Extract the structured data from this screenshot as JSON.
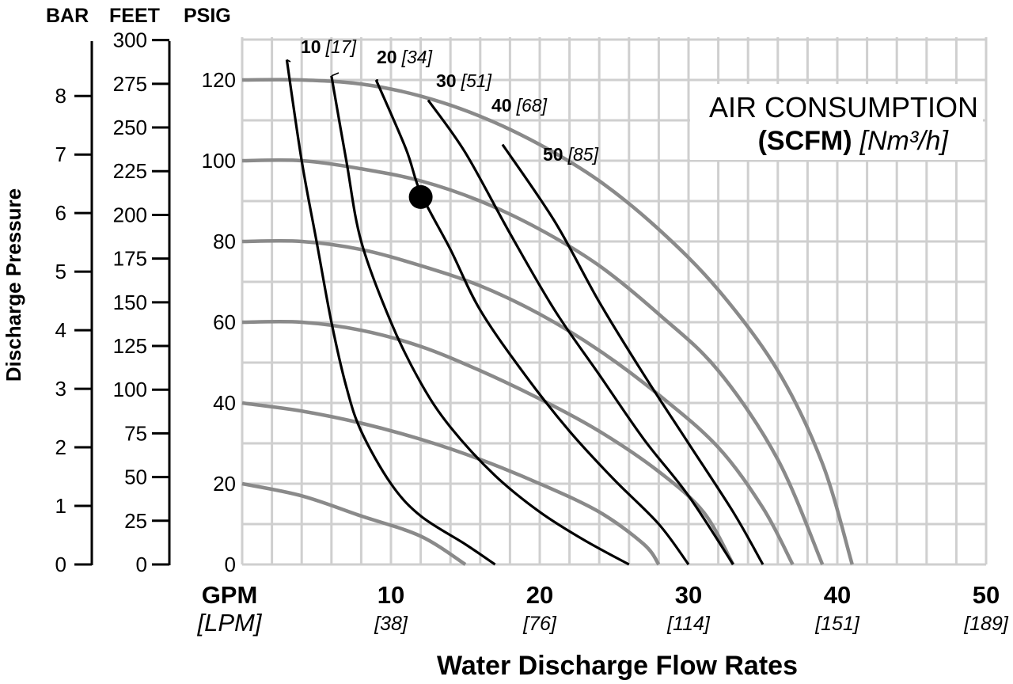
{
  "chart_data": {
    "type": "line",
    "title": "AIR CONSUMPTION",
    "subtitle_bold": "(SCFM)",
    "subtitle_italic": "[Nm³/h]",
    "xlabel": "Water Discharge Flow Rates",
    "x_unit_label": "GPM",
    "x_unit_label_alt": "[LPM]",
    "ylabel": "Discharge Pressure",
    "xlim": [
      0,
      50
    ],
    "ylim": [
      0,
      130
    ],
    "grid": true,
    "x_ticks": [
      {
        "gpm": "10",
        "lpm": "[38]"
      },
      {
        "gpm": "20",
        "lpm": "[76]"
      },
      {
        "gpm": "30",
        "lpm": "[114]"
      },
      {
        "gpm": "40",
        "lpm": "[151]"
      },
      {
        "gpm": "50",
        "lpm": "[189]"
      }
    ],
    "axes": {
      "bar": {
        "title": "BAR",
        "ticks": [
          "0",
          "1",
          "2",
          "3",
          "4",
          "5",
          "6",
          "7",
          "8"
        ]
      },
      "feet": {
        "title": "FEET",
        "ticks": [
          "0",
          "25",
          "50",
          "75",
          "100",
          "125",
          "150",
          "175",
          "200",
          "225",
          "250",
          "275",
          "300"
        ]
      },
      "psig": {
        "title": "PSIG",
        "ticks": [
          "0",
          "20",
          "40",
          "60",
          "80",
          "100",
          "120"
        ]
      }
    },
    "pressure_curves": [
      {
        "points": [
          [
            0,
            120
          ],
          [
            4,
            120
          ],
          [
            8,
            119
          ],
          [
            12,
            116
          ],
          [
            16,
            111
          ],
          [
            20,
            104
          ],
          [
            24,
            95
          ],
          [
            28,
            83
          ],
          [
            32,
            68
          ],
          [
            36,
            48
          ],
          [
            39,
            25
          ],
          [
            41,
            0
          ]
        ]
      },
      {
        "points": [
          [
            0,
            100
          ],
          [
            4,
            100
          ],
          [
            8,
            98
          ],
          [
            12,
            95
          ],
          [
            16,
            90
          ],
          [
            20,
            83
          ],
          [
            24,
            74
          ],
          [
            28,
            62
          ],
          [
            32,
            48
          ],
          [
            36,
            26
          ],
          [
            39,
            0
          ]
        ]
      },
      {
        "points": [
          [
            0,
            80
          ],
          [
            4,
            80
          ],
          [
            8,
            78
          ],
          [
            12,
            74
          ],
          [
            16,
            69
          ],
          [
            20,
            62
          ],
          [
            24,
            53
          ],
          [
            28,
            42
          ],
          [
            32,
            29
          ],
          [
            35,
            14
          ],
          [
            37,
            0
          ]
        ]
      },
      {
        "points": [
          [
            0,
            60
          ],
          [
            4,
            60
          ],
          [
            8,
            58
          ],
          [
            12,
            54
          ],
          [
            16,
            48
          ],
          [
            20,
            41
          ],
          [
            24,
            33
          ],
          [
            28,
            23
          ],
          [
            31,
            13
          ],
          [
            33,
            0
          ]
        ]
      },
      {
        "points": [
          [
            0,
            40
          ],
          [
            4,
            38
          ],
          [
            8,
            35
          ],
          [
            12,
            31
          ],
          [
            16,
            26
          ],
          [
            20,
            20
          ],
          [
            24,
            13
          ],
          [
            27,
            5
          ],
          [
            28,
            0
          ]
        ]
      },
      {
        "points": [
          [
            0,
            20
          ],
          [
            4,
            17
          ],
          [
            8,
            12
          ],
          [
            12,
            7
          ],
          [
            15,
            0
          ]
        ]
      }
    ],
    "air_curves": [
      {
        "label": "10",
        "label_alt": "[17]",
        "points": [
          [
            3,
            125
          ],
          [
            4,
            100
          ],
          [
            5,
            80
          ],
          [
            6,
            60
          ],
          [
            7,
            44
          ],
          [
            8,
            33
          ],
          [
            10,
            20
          ],
          [
            12,
            12
          ],
          [
            15,
            5
          ],
          [
            17,
            0
          ]
        ]
      },
      {
        "label": "20",
        "label_alt": "[34]",
        "points": [
          [
            6,
            121
          ],
          [
            7,
            100
          ],
          [
            8,
            80
          ],
          [
            10,
            60
          ],
          [
            12,
            45
          ],
          [
            14,
            34
          ],
          [
            17,
            22
          ],
          [
            20,
            13
          ],
          [
            23,
            6
          ],
          [
            26,
            0
          ]
        ]
      },
      {
        "label": "30",
        "label_alt": "[51]",
        "points": [
          [
            9,
            120
          ],
          [
            11,
            103
          ],
          [
            12,
            92
          ],
          [
            14,
            78
          ],
          [
            16,
            63
          ],
          [
            19,
            47
          ],
          [
            22,
            33
          ],
          [
            25,
            21
          ],
          [
            28,
            10
          ],
          [
            30,
            0
          ]
        ]
      },
      {
        "label": "40",
        "label_alt": "[68]",
        "points": [
          [
            12.5,
            115
          ],
          [
            15,
            102
          ],
          [
            18,
            82
          ],
          [
            21,
            63
          ],
          [
            24,
            47
          ],
          [
            27,
            31
          ],
          [
            30,
            17
          ],
          [
            33,
            0
          ]
        ]
      },
      {
        "label": "50",
        "label_alt": "[85]",
        "points": [
          [
            17.5,
            104
          ],
          [
            21,
            85
          ],
          [
            24,
            65
          ],
          [
            27,
            47
          ],
          [
            30,
            30
          ],
          [
            33,
            13
          ],
          [
            35,
            0
          ]
        ]
      }
    ],
    "marker": {
      "x": 12,
      "y": 91
    }
  }
}
